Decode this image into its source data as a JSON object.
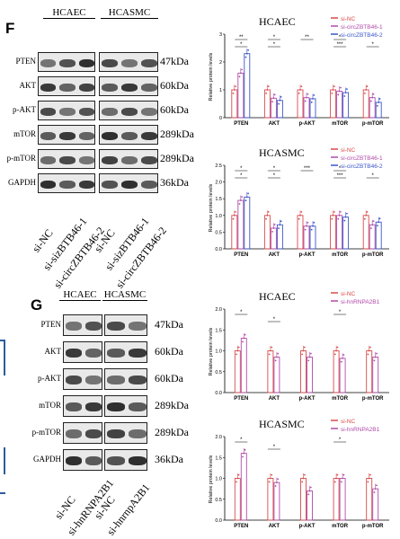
{
  "panel_f": {
    "letter": "F",
    "cell_lines": [
      "HCAEC",
      "HCASMC"
    ],
    "proteins": [
      "PTEN",
      "AKT",
      "p-AKT",
      "mTOR",
      "p-mTOR",
      "GAPDH"
    ],
    "sizes": [
      "47kDa",
      "60kDa",
      "60kDa",
      "289kDa",
      "289kDa",
      "36kDa"
    ],
    "lanes": [
      "si-NC",
      "si-sizBTB46-1",
      "si-circZBTB46-2",
      "si-NC",
      "si-sizBTB46-1",
      "si-circZBTB46-2"
    ]
  },
  "panel_g": {
    "letter": "G",
    "cell_lines": [
      "HCAEC",
      "HCASMC"
    ],
    "proteins": [
      "PTEN",
      "AKT",
      "p-AKT",
      "mTOR",
      "p-mTOR",
      "GAPDH"
    ],
    "sizes": [
      "47kDa",
      "60kDa",
      "60kDa",
      "289kDa",
      "289kDa",
      "36kDa"
    ],
    "lanes": [
      "si-NC",
      "si-hnRNPA2B1",
      "si-NC",
      "si-hnrnpA2B1"
    ]
  },
  "colors": {
    "nc": "#d94a4a",
    "kd1": "#b04aa8",
    "kd2": "#3b55c8"
  },
  "chart_data": [
    {
      "type": "bar",
      "title": "HCAEC",
      "ylabel": "Relative protein levels",
      "categories": [
        "PTEN",
        "AKT",
        "p-AKT",
        "mTOR",
        "p-mTOR"
      ],
      "ylim": [
        0,
        3
      ],
      "yticks": [
        "0",
        "1",
        "2",
        "3"
      ],
      "series": [
        {
          "name": "si-NC",
          "values": [
            1.0,
            1.0,
            1.0,
            1.0,
            1.0
          ]
        },
        {
          "name": "si-circZBTB46-1",
          "values": [
            1.6,
            0.7,
            0.72,
            0.95,
            0.72
          ]
        },
        {
          "name": "si-circZBTB46-2",
          "values": [
            2.3,
            0.62,
            0.68,
            0.9,
            0.55
          ]
        }
      ],
      "significance": [
        "**",
        "*",
        "*",
        "*",
        "**",
        "***",
        "*",
        "*"
      ]
    },
    {
      "type": "bar",
      "title": "HCASMC",
      "ylabel": "Relative protein levels",
      "categories": [
        "PTEN",
        "AKT",
        "p-AKT",
        "mTOR",
        "p-mTOR"
      ],
      "ylim": [
        0,
        2.5
      ],
      "yticks": [
        "0.0",
        "0.5",
        "1.0",
        "1.5",
        "2.0",
        "2.5"
      ],
      "series": [
        {
          "name": "si-NC",
          "values": [
            1.0,
            1.0,
            1.0,
            1.0,
            1.0
          ]
        },
        {
          "name": "si-circZBTB46-1",
          "values": [
            1.45,
            0.62,
            0.68,
            1.0,
            0.72
          ]
        },
        {
          "name": "si-circZBTB46-2",
          "values": [
            1.55,
            0.72,
            0.68,
            0.95,
            0.8
          ]
        }
      ],
      "significance": [
        "*",
        "*",
        "*",
        "*",
        "***",
        "***",
        "*",
        "*"
      ]
    },
    {
      "type": "bar",
      "title": "HCAEC",
      "ylabel": "Relative protein levels",
      "categories": [
        "PTEN",
        "AKT",
        "p-AKT",
        "mTOR",
        "p-mTOR"
      ],
      "ylim": [
        0,
        2.0
      ],
      "yticks": [
        "0.0",
        "0.5",
        "1.0",
        "1.5",
        "2.0"
      ],
      "series": [
        {
          "name": "si-NC",
          "values": [
            1.0,
            1.0,
            1.0,
            1.0,
            1.0
          ]
        },
        {
          "name": "si-hnRNPA2B1",
          "values": [
            1.3,
            0.85,
            0.85,
            0.82,
            0.85
          ]
        }
      ],
      "significance": [
        "*",
        "*",
        "*"
      ]
    },
    {
      "type": "bar",
      "title": "HCASMC",
      "ylabel": "Relative protein levels",
      "categories": [
        "PTEN",
        "AKT",
        "p-AKT",
        "mTOR",
        "p-mTOR"
      ],
      "ylim": [
        0,
        2.0
      ],
      "yticks": [
        "0.0",
        "0.5",
        "1.0",
        "1.5",
        "2.0"
      ],
      "series": [
        {
          "name": "si-NC",
          "values": [
            1.0,
            1.0,
            1.0,
            1.0,
            1.0
          ]
        },
        {
          "name": "si-hnRNPA2B1",
          "values": [
            1.6,
            0.9,
            0.7,
            1.0,
            0.75
          ]
        }
      ],
      "significance": [
        "*",
        "*",
        "*"
      ]
    }
  ]
}
